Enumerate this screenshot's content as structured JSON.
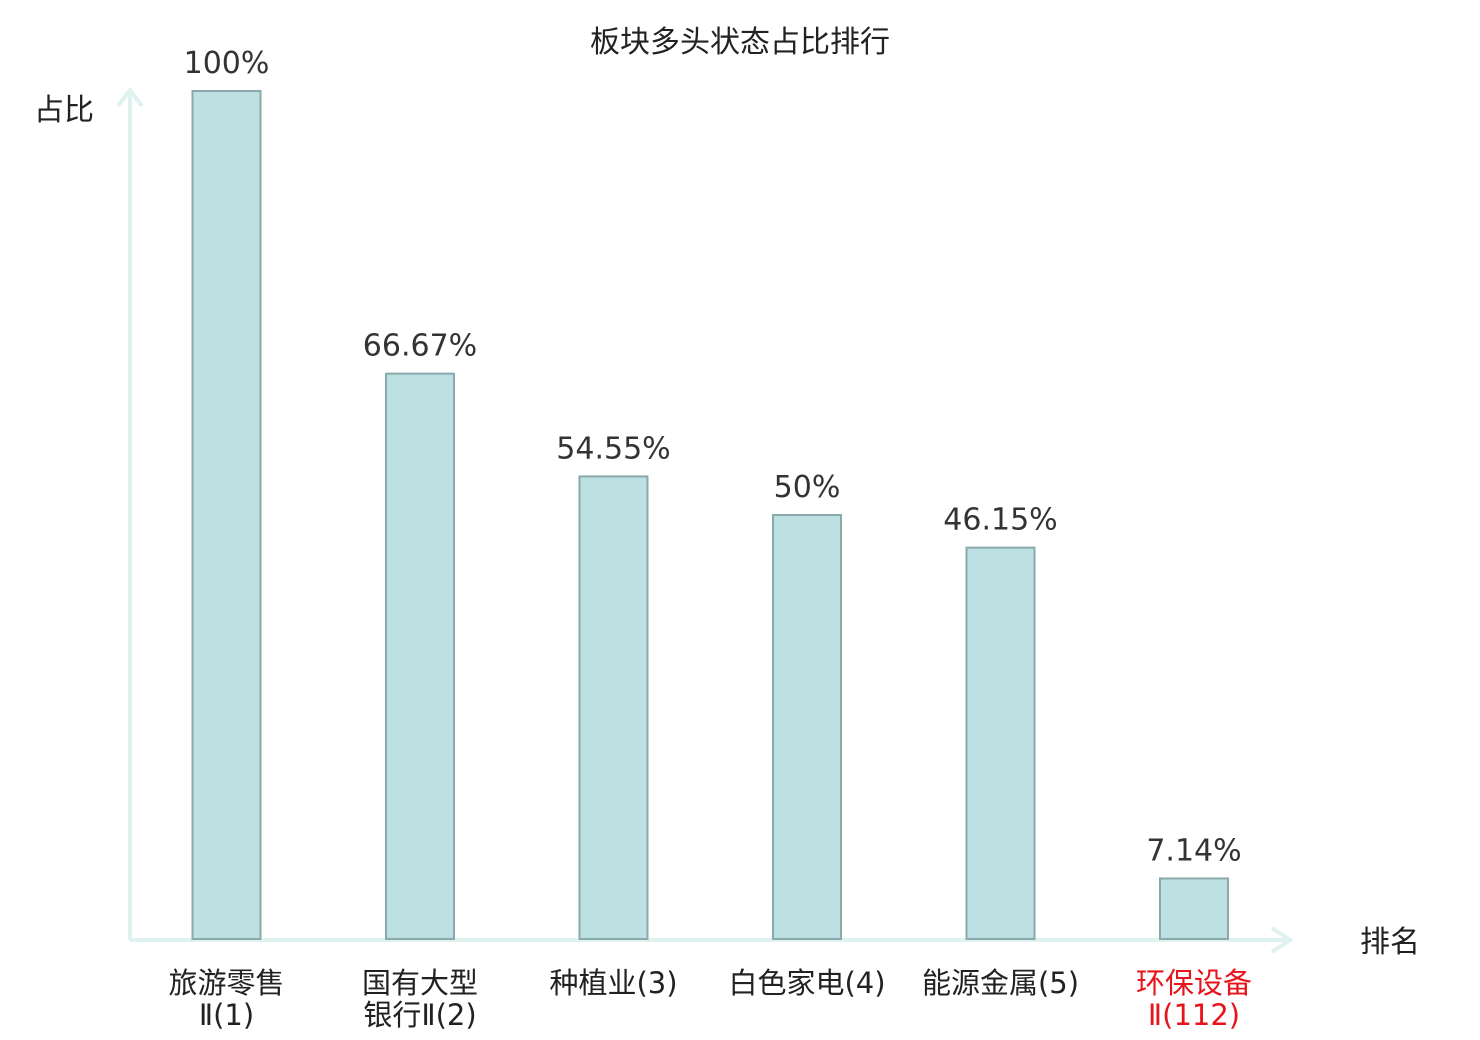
{
  "chart_data": {
    "type": "bar",
    "title": "板块多头状态占比排行",
    "ylabel": "占比",
    "xlabel": "排名",
    "ylim": [
      0,
      100
    ],
    "grid": false,
    "categories": [
      {
        "lines": [
          "旅游零售",
          "Ⅱ(1)"
        ],
        "highlight": false
      },
      {
        "lines": [
          "国有大型",
          "银行Ⅱ(2)"
        ],
        "highlight": false
      },
      {
        "lines": [
          "种植业(3)"
        ],
        "highlight": false
      },
      {
        "lines": [
          "白色家电(4)"
        ],
        "highlight": false
      },
      {
        "lines": [
          "能源金属(5)"
        ],
        "highlight": false
      },
      {
        "lines": [
          "环保设备",
          "Ⅱ(112)"
        ],
        "highlight": true
      }
    ],
    "values": [
      100,
      66.67,
      54.55,
      50,
      46.15,
      7.14
    ],
    "value_labels": [
      "100%",
      "66.67%",
      "54.55%",
      "50%",
      "46.15%",
      "7.14%"
    ]
  },
  "colors": {
    "bar_fill": "#bde0e2",
    "bar_stroke": "#8aa9ab",
    "axis": "#dff2f0",
    "highlight": "#e8141b"
  }
}
